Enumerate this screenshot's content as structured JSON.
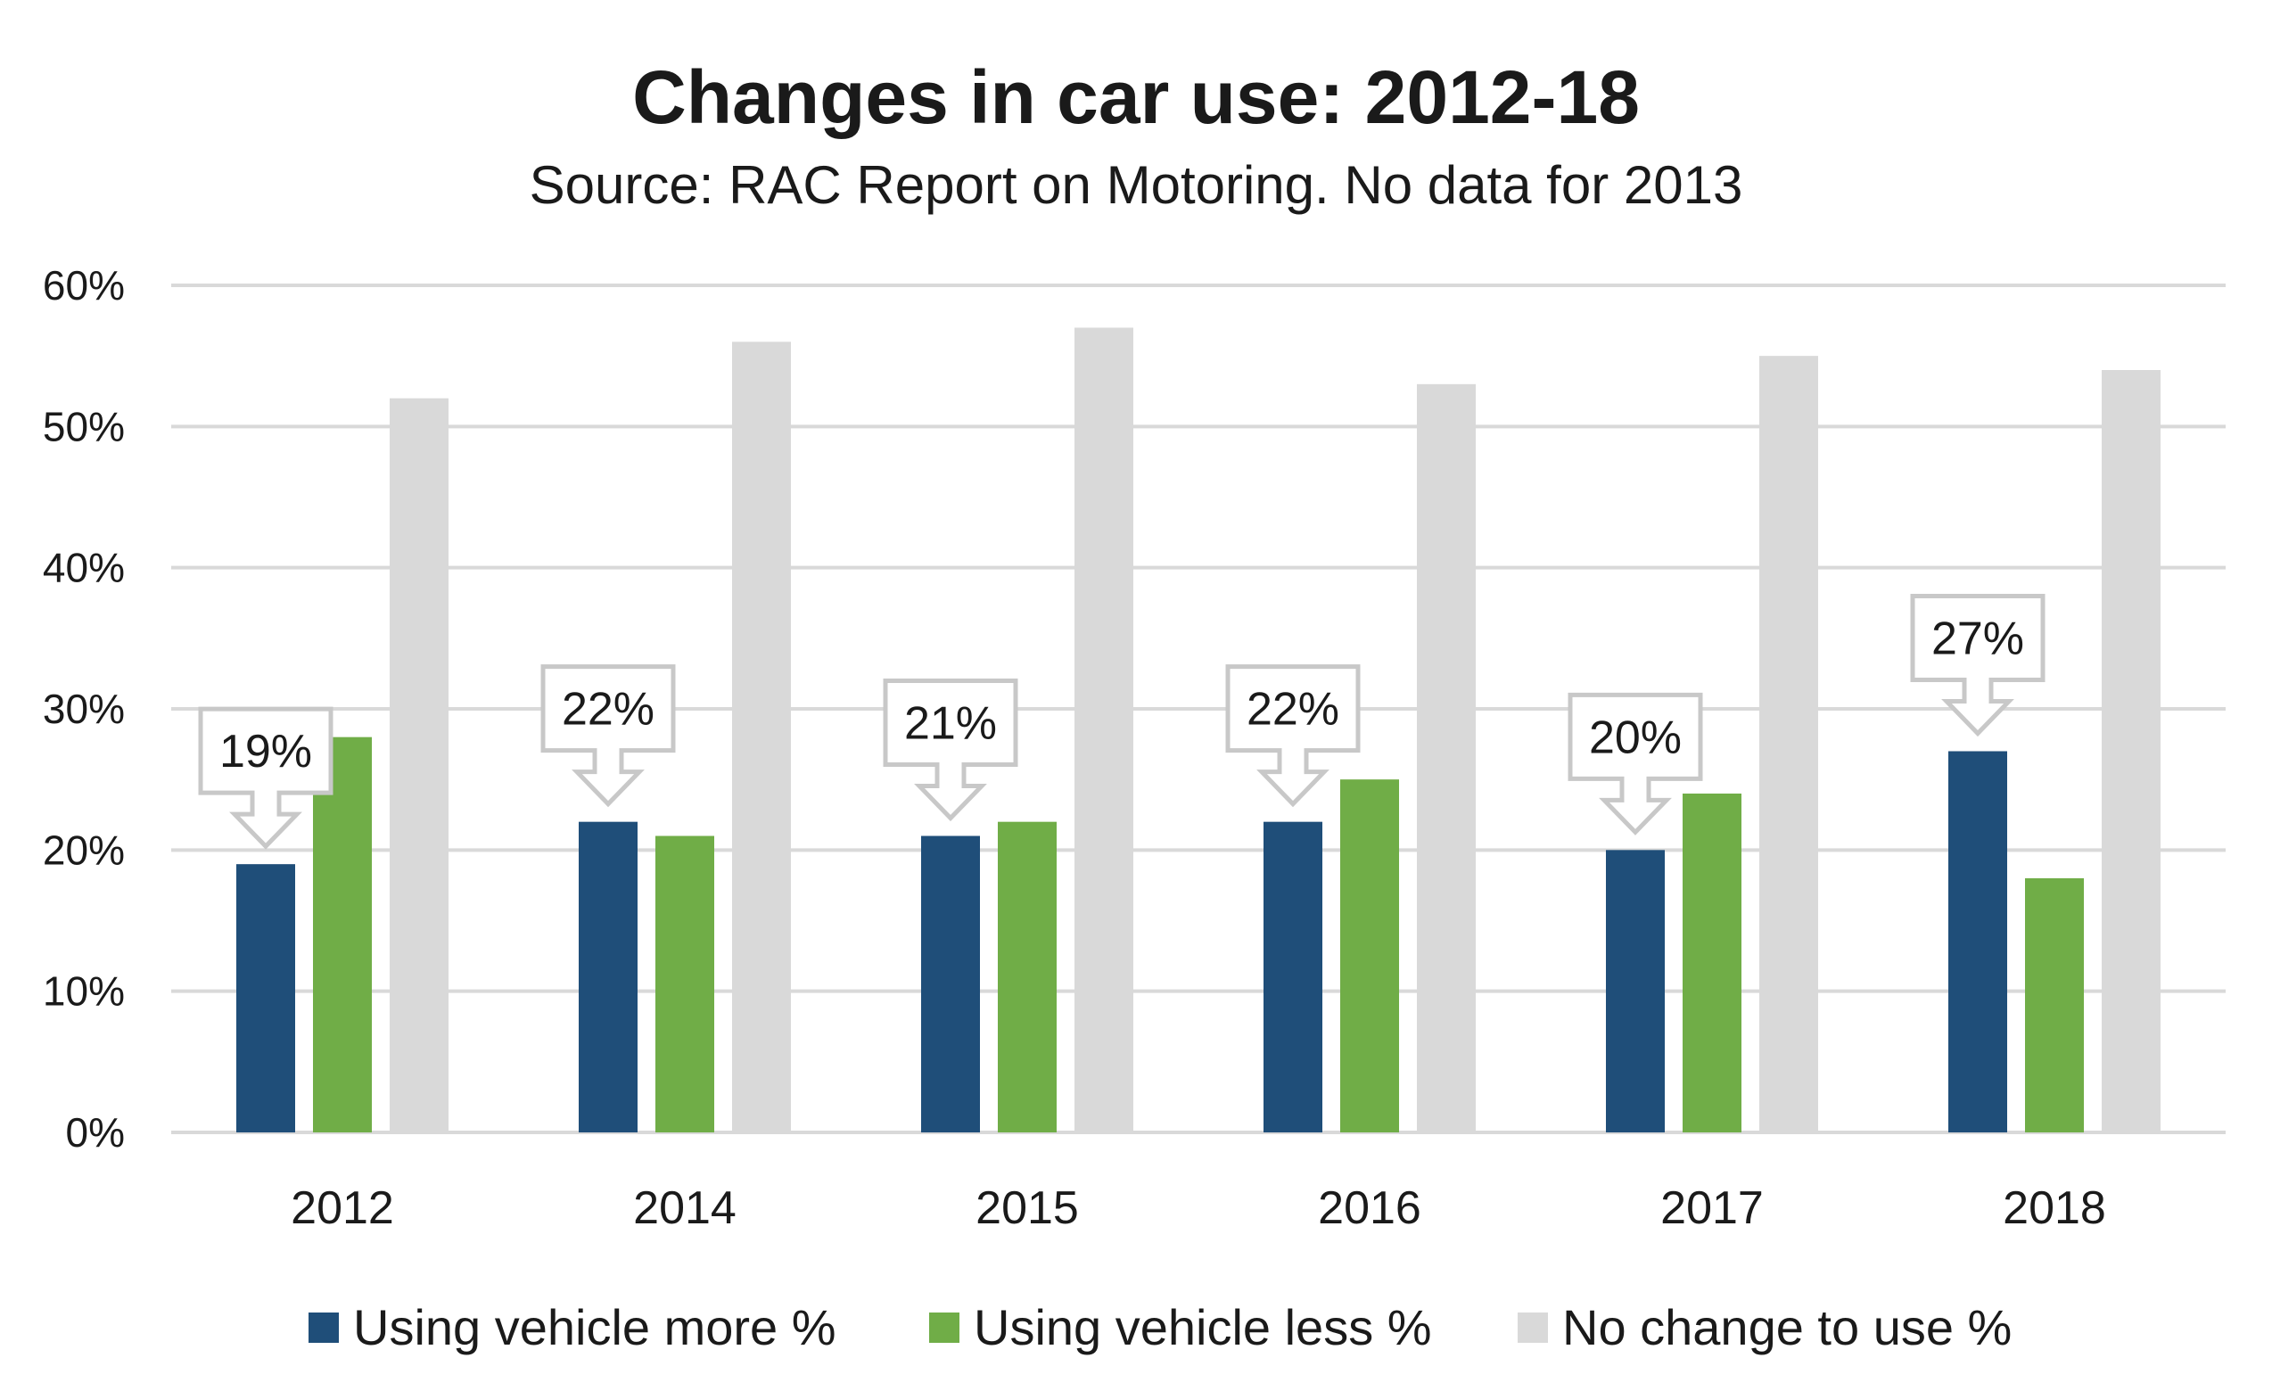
{
  "chart_data": {
    "type": "bar",
    "title": "Changes in car use: 2012-18",
    "subtitle": "Source: RAC Report on Motoring. No data for 2013",
    "categories": [
      "2012",
      "2014",
      "2015",
      "2016",
      "2017",
      "2018"
    ],
    "series": [
      {
        "name": "Using vehicle more %",
        "color": "#1f4e79",
        "values": [
          19,
          22,
          21,
          22,
          20,
          27
        ]
      },
      {
        "name": "Using vehicle less %",
        "color": "#70ad47",
        "values": [
          28,
          21,
          22,
          25,
          24,
          18
        ]
      },
      {
        "name": "No change to use %",
        "color": "#d9d9d9",
        "values": [
          52,
          56,
          57,
          53,
          55,
          54
        ]
      }
    ],
    "ylim": [
      0,
      60
    ],
    "yticks": [
      "0%",
      "10%",
      "20%",
      "30%",
      "40%",
      "50%",
      "60%"
    ],
    "ytick_values": [
      0,
      10,
      20,
      30,
      40,
      50,
      60
    ],
    "callout_labels": [
      "19%",
      "22%",
      "21%",
      "22%",
      "20%",
      "27%"
    ],
    "grid": true,
    "legend_position": "bottom"
  }
}
